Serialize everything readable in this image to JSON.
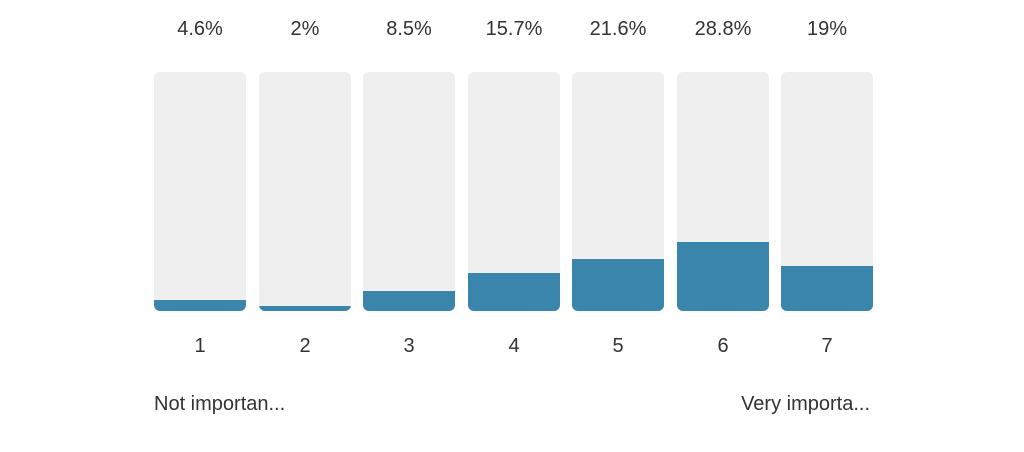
{
  "chart_data": {
    "type": "bar",
    "categories": [
      "1",
      "2",
      "3",
      "4",
      "5",
      "6",
      "7"
    ],
    "values": [
      4.6,
      2,
      8.5,
      15.7,
      21.6,
      28.8,
      19
    ],
    "value_labels": [
      "4.6%",
      "2%",
      "8.5%",
      "15.7%",
      "21.6%",
      "28.8%",
      "19%"
    ],
    "ylim": [
      0,
      100
    ],
    "scale_labels": {
      "low": "Not importan...",
      "high": "Very importa..."
    },
    "colors": {
      "fill": "#3a85ab",
      "track": "#efefef",
      "text": "#333333"
    }
  }
}
